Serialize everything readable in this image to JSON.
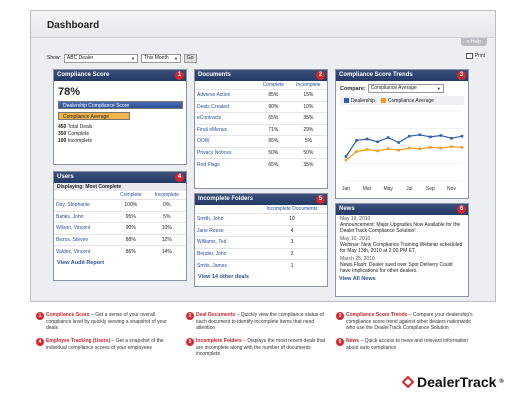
{
  "page": {
    "title": "Dashboard",
    "help": "Help",
    "print": "Print"
  },
  "toolbar": {
    "show_label": "Show:",
    "dealer": "ABC Dealer",
    "period": "This Month",
    "go": "Go"
  },
  "compliance": {
    "title": "Compliance Score",
    "num": "1",
    "score": "78%",
    "dealer_label": "Dealership Compliance Score",
    "average_label": "Compliance Average",
    "dealer_value": 78,
    "average_value": 45,
    "stats": [
      {
        "count": "450",
        "label": "Total Deals"
      },
      {
        "count": "350",
        "label": "Complete"
      },
      {
        "count": "100",
        "label": "Incomplete"
      }
    ]
  },
  "documents": {
    "title": "Documents",
    "num": "2",
    "columns": [
      "Complete",
      "Incomplete"
    ],
    "rows": [
      {
        "name": "Adverse Action",
        "complete": "85%",
        "incomplete": "15%"
      },
      {
        "name": "Deals Created",
        "complete": "90%",
        "incomplete": "10%"
      },
      {
        "name": "eContracts",
        "complete": "65%",
        "incomplete": "35%"
      },
      {
        "name": "Final eMenus",
        "complete": "71%",
        "incomplete": "29%"
      },
      {
        "name": "OOW",
        "complete": "95%",
        "incomplete": "5%"
      },
      {
        "name": "Privacy Notices",
        "complete": "50%",
        "incomplete": "50%"
      },
      {
        "name": "Red Flags",
        "complete": "65%",
        "incomplete": "35%"
      }
    ]
  },
  "trends": {
    "title": "Compliance Score Trends",
    "num": "3",
    "compare_label": "Compare:",
    "compare_value": "Compliance Average",
    "legend": [
      "Dealership",
      "Compliance Average"
    ]
  },
  "chart_data": {
    "type": "line",
    "categories": [
      "Jan",
      "Mar",
      "May",
      "Jul",
      "Sep",
      "Nov"
    ],
    "x": [
      "Jan",
      "Feb",
      "Mar",
      "Apr",
      "May",
      "Jun",
      "Jul",
      "Aug",
      "Sep",
      "Oct",
      "Nov",
      "Dec"
    ],
    "ylim": [
      0,
      100
    ],
    "series": [
      {
        "name": "Dealership",
        "color": "#2f5fb3",
        "values": [
          35,
          58,
          60,
          56,
          62,
          55,
          64,
          66,
          63,
          65,
          61,
          64
        ]
      },
      {
        "name": "Compliance Average",
        "color": "#f39c1f",
        "values": [
          30,
          42,
          45,
          43,
          46,
          44,
          47,
          46,
          48,
          47,
          49,
          48
        ]
      }
    ]
  },
  "users": {
    "title": "Users",
    "num": "4",
    "sub": "Displaying: Most Complete",
    "columns": [
      "Complete",
      "Incomplete"
    ],
    "rows": [
      {
        "name": "Day, Stephanie",
        "complete": "100%",
        "incomplete": "0%"
      },
      {
        "name": "Banks, John",
        "complete": "95%",
        "incomplete": "5%"
      },
      {
        "name": "Wilson, Vincent",
        "complete": "90%",
        "incomplete": "10%"
      },
      {
        "name": "Bezos, Steven",
        "complete": "88%",
        "incomplete": "12%"
      },
      {
        "name": "Valdez, Vincent",
        "complete": "86%",
        "incomplete": "14%"
      }
    ],
    "more": "View Audit Report"
  },
  "folders": {
    "title": "Incomplete Folders",
    "num": "5",
    "column": "Incomplete Documents",
    "rows": [
      {
        "name": "Smith, John",
        "count": "10"
      },
      {
        "name": "Jane Reese",
        "count": "4"
      },
      {
        "name": "Williams, Ted",
        "count": "3"
      },
      {
        "name": "Bender, John",
        "count": "2"
      },
      {
        "name": "Smits, James",
        "count": "1"
      }
    ],
    "more": "View 14 other deals"
  },
  "news": {
    "title": "News",
    "num": "6",
    "items": [
      {
        "date": "May 19, 2010",
        "text": "Announcement:  Major Upgrades Now Available for the DealerTrack Compliance Solution!"
      },
      {
        "date": "May 10, 2010",
        "text": "Webinar:  New Compliance Training Webinar scheduled for May 13th, 2010 at 2:00 PM ET."
      },
      {
        "date": "March 25, 2010",
        "text": "News Flash: Dealer sued over Spot Delivery Could have implications for other dealers."
      }
    ],
    "more": "View All News"
  },
  "notes": [
    {
      "num": "1",
      "title": "Compliance Score",
      "text": " – Get a sense of your overall compliance level by quickly viewing a snapshot of your deals"
    },
    {
      "num": "2",
      "title": "Deal Documents",
      "text": " – Quickly view the compliance status of each document to identify incomplete items that need attention"
    },
    {
      "num": "3",
      "title": "Compliance Score Trends",
      "text": " – Compare your dealership's compliance score trend against other dealers nationwide who use the DealerTrack Compliance Solution"
    },
    {
      "num": "4",
      "title": "Employee Tracking (Users)",
      "text": " – Get a snapshot of the individual compliance scores of your employees"
    },
    {
      "num": "5",
      "title": "Incomplete Folders",
      "text": " – Displays the most recent deals that are incomplete along with the number of documents incomplete"
    },
    {
      "num": "6",
      "title": "News",
      "text": " – Quick access to news and relevant information about auto compliance"
    }
  ],
  "brand": {
    "name": "DealerTrack",
    "mark": "®",
    "accent": "#d8262b"
  }
}
